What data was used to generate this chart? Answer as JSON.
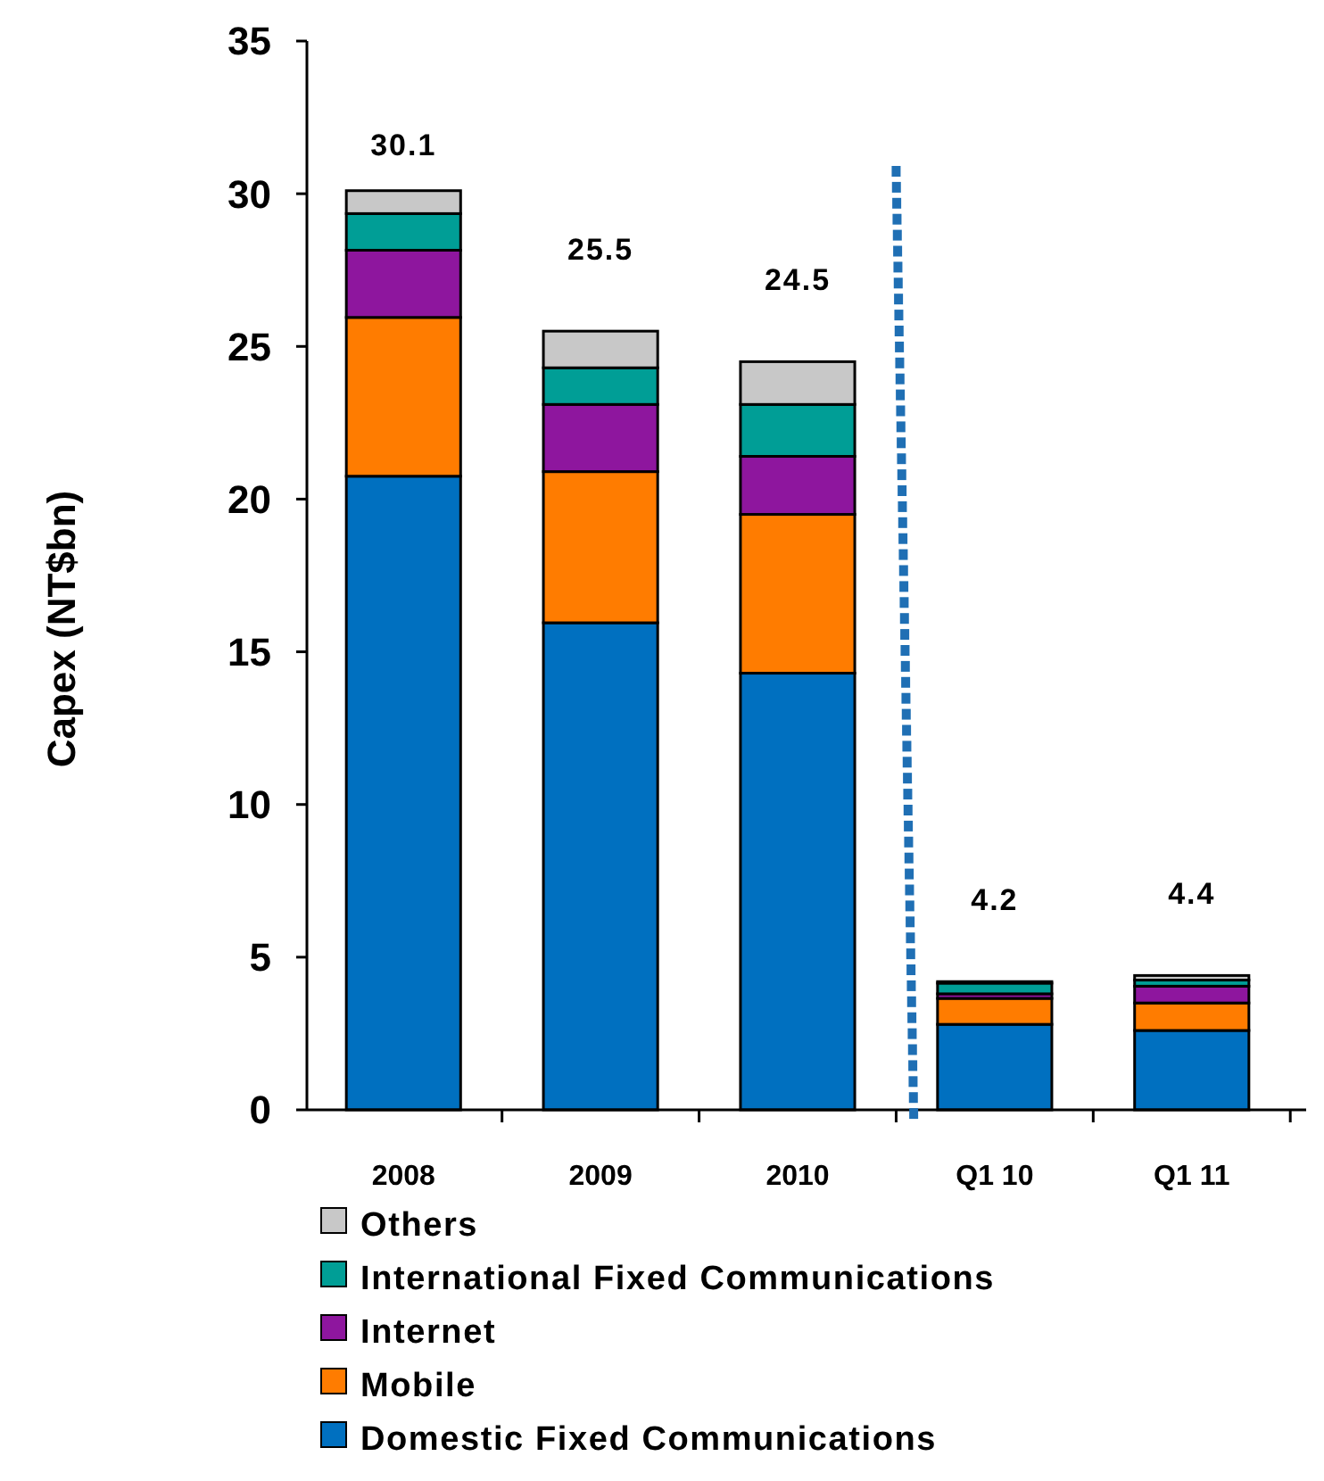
{
  "chart_data": {
    "type": "bar",
    "stacked": true,
    "ylabel": "Capex (NT$bn)",
    "categories": [
      "2008",
      "2009",
      "2010",
      "Q1 10",
      "Q1 11"
    ],
    "series": [
      {
        "name": "Domestic Fixed Communications",
        "color": "#0070c0",
        "values": [
          20.75,
          15.95,
          14.3,
          2.8,
          2.6
        ]
      },
      {
        "name": "Mobile",
        "color": "#ff7c00",
        "values": [
          5.2,
          4.95,
          5.2,
          0.85,
          0.9
        ]
      },
      {
        "name": "Internet",
        "color": "#8e169e",
        "values": [
          2.2,
          2.2,
          1.9,
          0.15,
          0.55
        ]
      },
      {
        "name": "International Fixed Communications",
        "color": "#009e96",
        "values": [
          1.2,
          1.2,
          1.7,
          0.35,
          0.2
        ]
      },
      {
        "name": "Others",
        "color": "#c8c8c8",
        "values": [
          0.75,
          1.2,
          1.4,
          0.05,
          0.15
        ]
      }
    ],
    "totals": [
      "30.1",
      "25.5",
      "24.5",
      "4.2",
      "4.4"
    ],
    "ylim": [
      0,
      35
    ],
    "yticks": [
      0,
      5,
      10,
      15,
      20,
      25,
      30,
      35
    ],
    "legend": "bottom"
  }
}
